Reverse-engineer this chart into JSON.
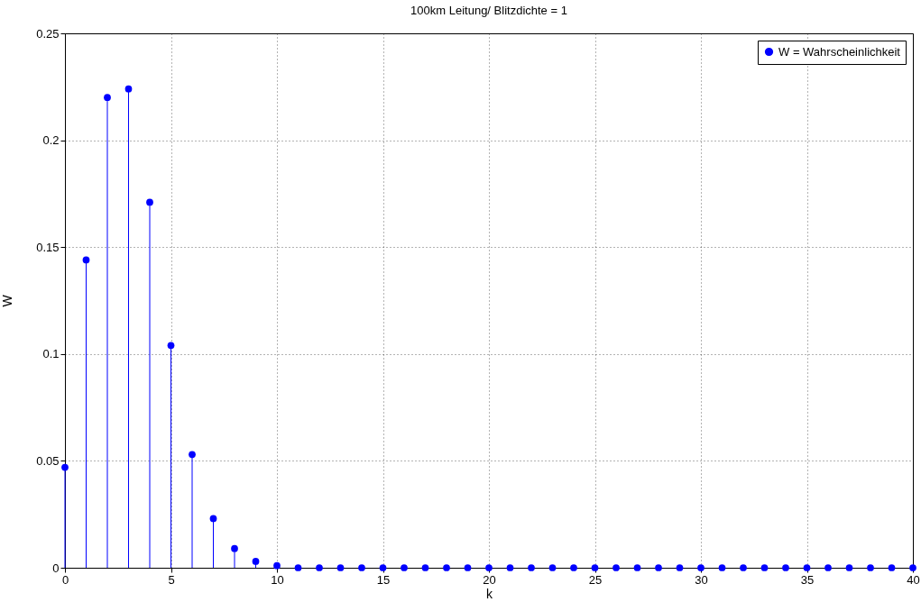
{
  "chart_data": {
    "type": "lollipop",
    "title": "100km Leitung/ Blitzdichte = 1",
    "xlabel": "k",
    "ylabel": "W",
    "x": [
      0,
      1,
      2,
      3,
      4,
      5,
      6,
      7,
      8,
      9,
      10,
      11,
      12,
      13,
      14,
      15,
      16,
      17,
      18,
      19,
      20,
      21,
      22,
      23,
      24,
      25,
      26,
      27,
      28,
      29,
      30,
      31,
      32,
      33,
      34,
      35,
      36,
      37,
      38,
      39,
      40
    ],
    "series": [
      {
        "name": "W = Wahrscheinlichkeit",
        "color": "#0000ff",
        "values": [
          0.047,
          0.144,
          0.22,
          0.224,
          0.171,
          0.104,
          0.053,
          0.023,
          0.009,
          0.003,
          0.001,
          0,
          0,
          0,
          0,
          0,
          0,
          0,
          0,
          0,
          0,
          0,
          0,
          0,
          0,
          0,
          0,
          0,
          0,
          0,
          0,
          0,
          0,
          0,
          0,
          0,
          0,
          0,
          0,
          0,
          0
        ]
      }
    ],
    "xlim": [
      0,
      40
    ],
    "xticks": [
      0,
      5,
      10,
      15,
      20,
      25,
      30,
      35,
      40
    ],
    "ylim": [
      0,
      0.25
    ],
    "yticks": [
      0,
      0.05,
      0.1,
      0.15,
      0.2,
      0.25
    ],
    "grid": true,
    "legend": "top right",
    "marker": "circle",
    "line_style": "solid"
  }
}
